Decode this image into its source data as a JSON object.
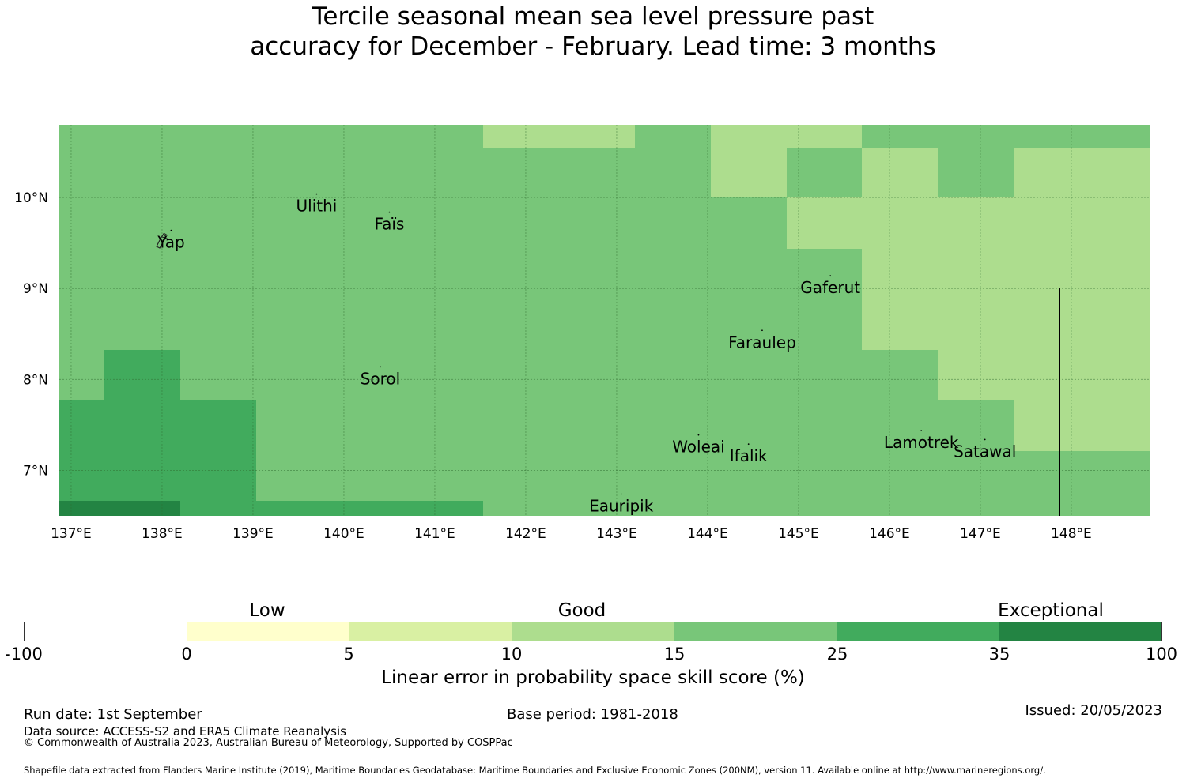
{
  "title": {
    "line1": "Tercile seasonal mean sea level pressure past",
    "line2": "accuracy for December - February. Lead time: 3 months"
  },
  "colors": {
    "c15_25": "#78c679",
    "c10_15": "#addd8e",
    "c25_35": "#41ab5d",
    "c35_100": "#238443",
    "c5_10": "#d9f0a3",
    "c0_5": "#ffffcc",
    "cneg": "#ffffff"
  },
  "map": {
    "lon_range": [
      136.87,
      148.87
    ],
    "lat_range": [
      6.5,
      10.8
    ],
    "lon_ticks": [
      "137°E",
      "138°E",
      "139°E",
      "140°E",
      "141°E",
      "142°E",
      "143°E",
      "144°E",
      "145°E",
      "146°E",
      "147°E",
      "148°E"
    ],
    "lat_ticks": [
      "10°N",
      "9°N",
      "8°N",
      "7°N"
    ],
    "lon_tick_values": [
      137,
      138,
      139,
      140,
      141,
      142,
      143,
      144,
      145,
      146,
      147,
      148
    ],
    "lat_tick_values": [
      10,
      9,
      8,
      7
    ],
    "grid_lines": true,
    "islands": [
      {
        "name": "Yap",
        "lon": 138.1,
        "lat": 9.5
      },
      {
        "name": "Ulithi",
        "lon": 139.7,
        "lat": 9.9
      },
      {
        "name": "Faïs",
        "lon": 140.5,
        "lat": 9.7
      },
      {
        "name": "Gaferut",
        "lon": 145.35,
        "lat": 9.0
      },
      {
        "name": "Faraulep",
        "lon": 144.6,
        "lat": 8.4
      },
      {
        "name": "Sorol",
        "lon": 140.4,
        "lat": 8.0
      },
      {
        "name": "Woleai",
        "lon": 143.9,
        "lat": 7.25
      },
      {
        "name": "Ifalik",
        "lon": 144.45,
        "lat": 7.15
      },
      {
        "name": "Lamotrek",
        "lon": 146.35,
        "lat": 7.3
      },
      {
        "name": "Satawal",
        "lon": 147.05,
        "lat": 7.2
      },
      {
        "name": "Eauripik",
        "lon": 143.05,
        "lat": 6.6
      }
    ]
  },
  "colorbar": {
    "categories": [
      "Low",
      "Good",
      "Exceptional"
    ],
    "tick_labels": [
      "-100",
      "0",
      "5",
      "10",
      "15",
      "25",
      "35",
      "100"
    ],
    "label": "Linear error in probability space skill score (%)"
  },
  "footer": {
    "run_date": "Run date: 1st September",
    "base_period": "Base period: 1981-2018",
    "issued": "Issued: 20/05/2023",
    "data_source": "Data source: ACCESS-S2 and ERA5 Climate Reanalysis",
    "copyright": "© Commonwealth of Australia 2023, Australian Bureau of Meteorology, Supported by COSPPac",
    "shapefile": "Shapefile data extracted from Flanders Marine Institute (2019), Maritime Boundaries Geodatabase: Maritime Boundaries and Exclusive Economic Zones (200NM), version 11. Available online at http://www.marineregions.org/."
  }
}
